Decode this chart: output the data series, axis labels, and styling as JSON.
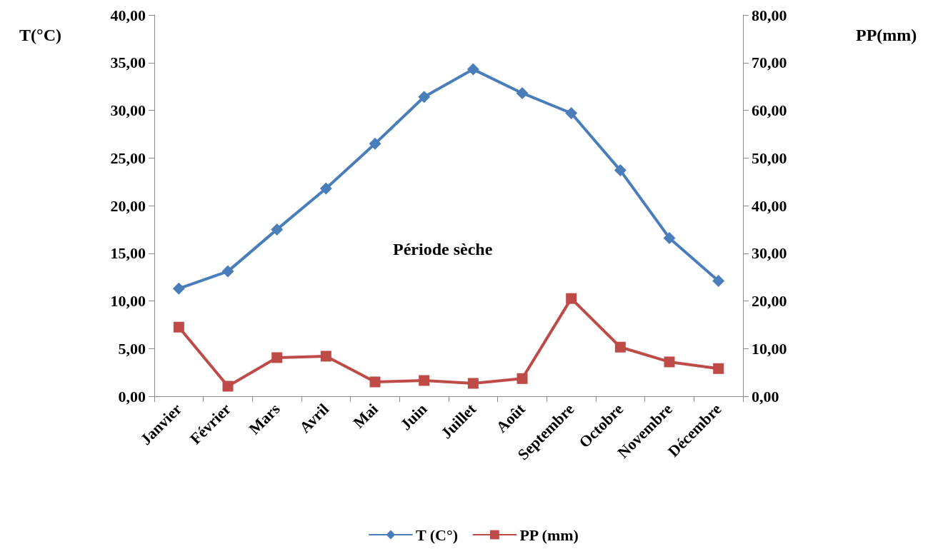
{
  "chart_data": {
    "type": "line",
    "categories": [
      "Janvier",
      "Février",
      "Mars",
      "Avril",
      "Mai",
      "Juin",
      "Juillet",
      "Août",
      "Septembre",
      "Octobre",
      "Novembre",
      "Décembre"
    ],
    "ylabel": "T(°C)",
    "y2label": "PP(mm)",
    "series": [
      {
        "name": "T (C°)",
        "color": "#4a7ebb",
        "marker": "diamond",
        "values": [
          11.3,
          13.1,
          17.5,
          21.8,
          26.5,
          31.4,
          34.3,
          31.8,
          29.7,
          23.7,
          16.6,
          12.1
        ]
      },
      {
        "name": "PP (mm)",
        "color": "#be4b48",
        "marker": "square",
        "axis": "y2",
        "values": [
          14.5,
          2.1,
          8.1,
          8.4,
          3.0,
          3.3,
          2.7,
          3.7,
          20.5,
          10.3,
          7.2,
          5.8
        ]
      }
    ],
    "ylim": [
      0,
      40
    ],
    "yticks": [
      {
        "value": 0,
        "label": "0,00"
      },
      {
        "value": 5,
        "label": "5,00"
      },
      {
        "value": 10,
        "label": "10,00"
      },
      {
        "value": 15,
        "label": "15,00"
      },
      {
        "value": 20,
        "label": "20,00"
      },
      {
        "value": 25,
        "label": "25,00"
      },
      {
        "value": 30,
        "label": "30,00"
      },
      {
        "value": 35,
        "label": "35,00"
      },
      {
        "value": 40,
        "label": "40,00"
      }
    ],
    "y2lim": [
      0,
      80
    ],
    "y2ticks": [
      {
        "value": 0,
        "label": "0,00"
      },
      {
        "value": 10,
        "label": "10,00"
      },
      {
        "value": 20,
        "label": "20,00"
      },
      {
        "value": 30,
        "label": "30,00"
      },
      {
        "value": 40,
        "label": "40,00"
      },
      {
        "value": 50,
        "label": "50,00"
      },
      {
        "value": 60,
        "label": "60,00"
      },
      {
        "value": 70,
        "label": "70,00"
      },
      {
        "value": 80,
        "label": "80,00"
      }
    ],
    "annotations": [
      "Période sèche"
    ],
    "grid": false,
    "legend": "bottom",
    "line_style": "solid"
  }
}
